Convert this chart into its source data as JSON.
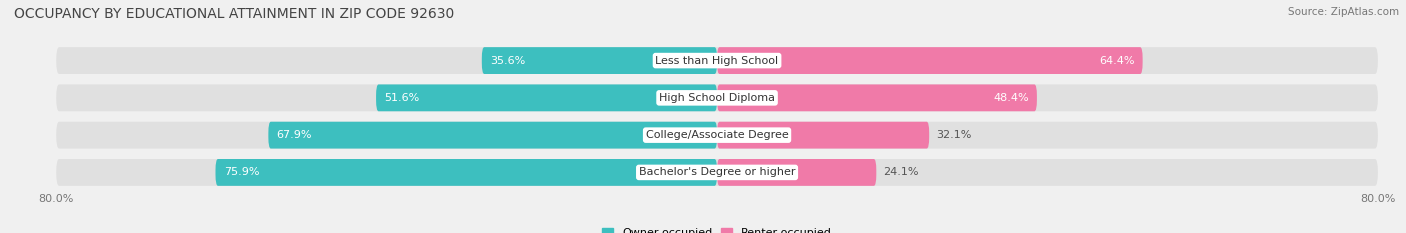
{
  "title": "OCCUPANCY BY EDUCATIONAL ATTAINMENT IN ZIP CODE 92630",
  "source": "Source: ZipAtlas.com",
  "categories": [
    "Less than High School",
    "High School Diploma",
    "College/Associate Degree",
    "Bachelor's Degree or higher"
  ],
  "owner_values": [
    35.6,
    51.6,
    67.9,
    75.9
  ],
  "renter_values": [
    64.4,
    48.4,
    32.1,
    24.1
  ],
  "owner_color": "#3DBFBF",
  "renter_color": "#F07AA8",
  "background_color": "#F0F0F0",
  "bar_bg_color": "#E0E0E0",
  "axis_min": -80.0,
  "axis_max": 80.0,
  "title_fontsize": 10,
  "label_fontsize": 8,
  "value_fontsize": 8,
  "source_fontsize": 7.5,
  "legend_labels": [
    "Owner-occupied",
    "Renter-occupied"
  ]
}
